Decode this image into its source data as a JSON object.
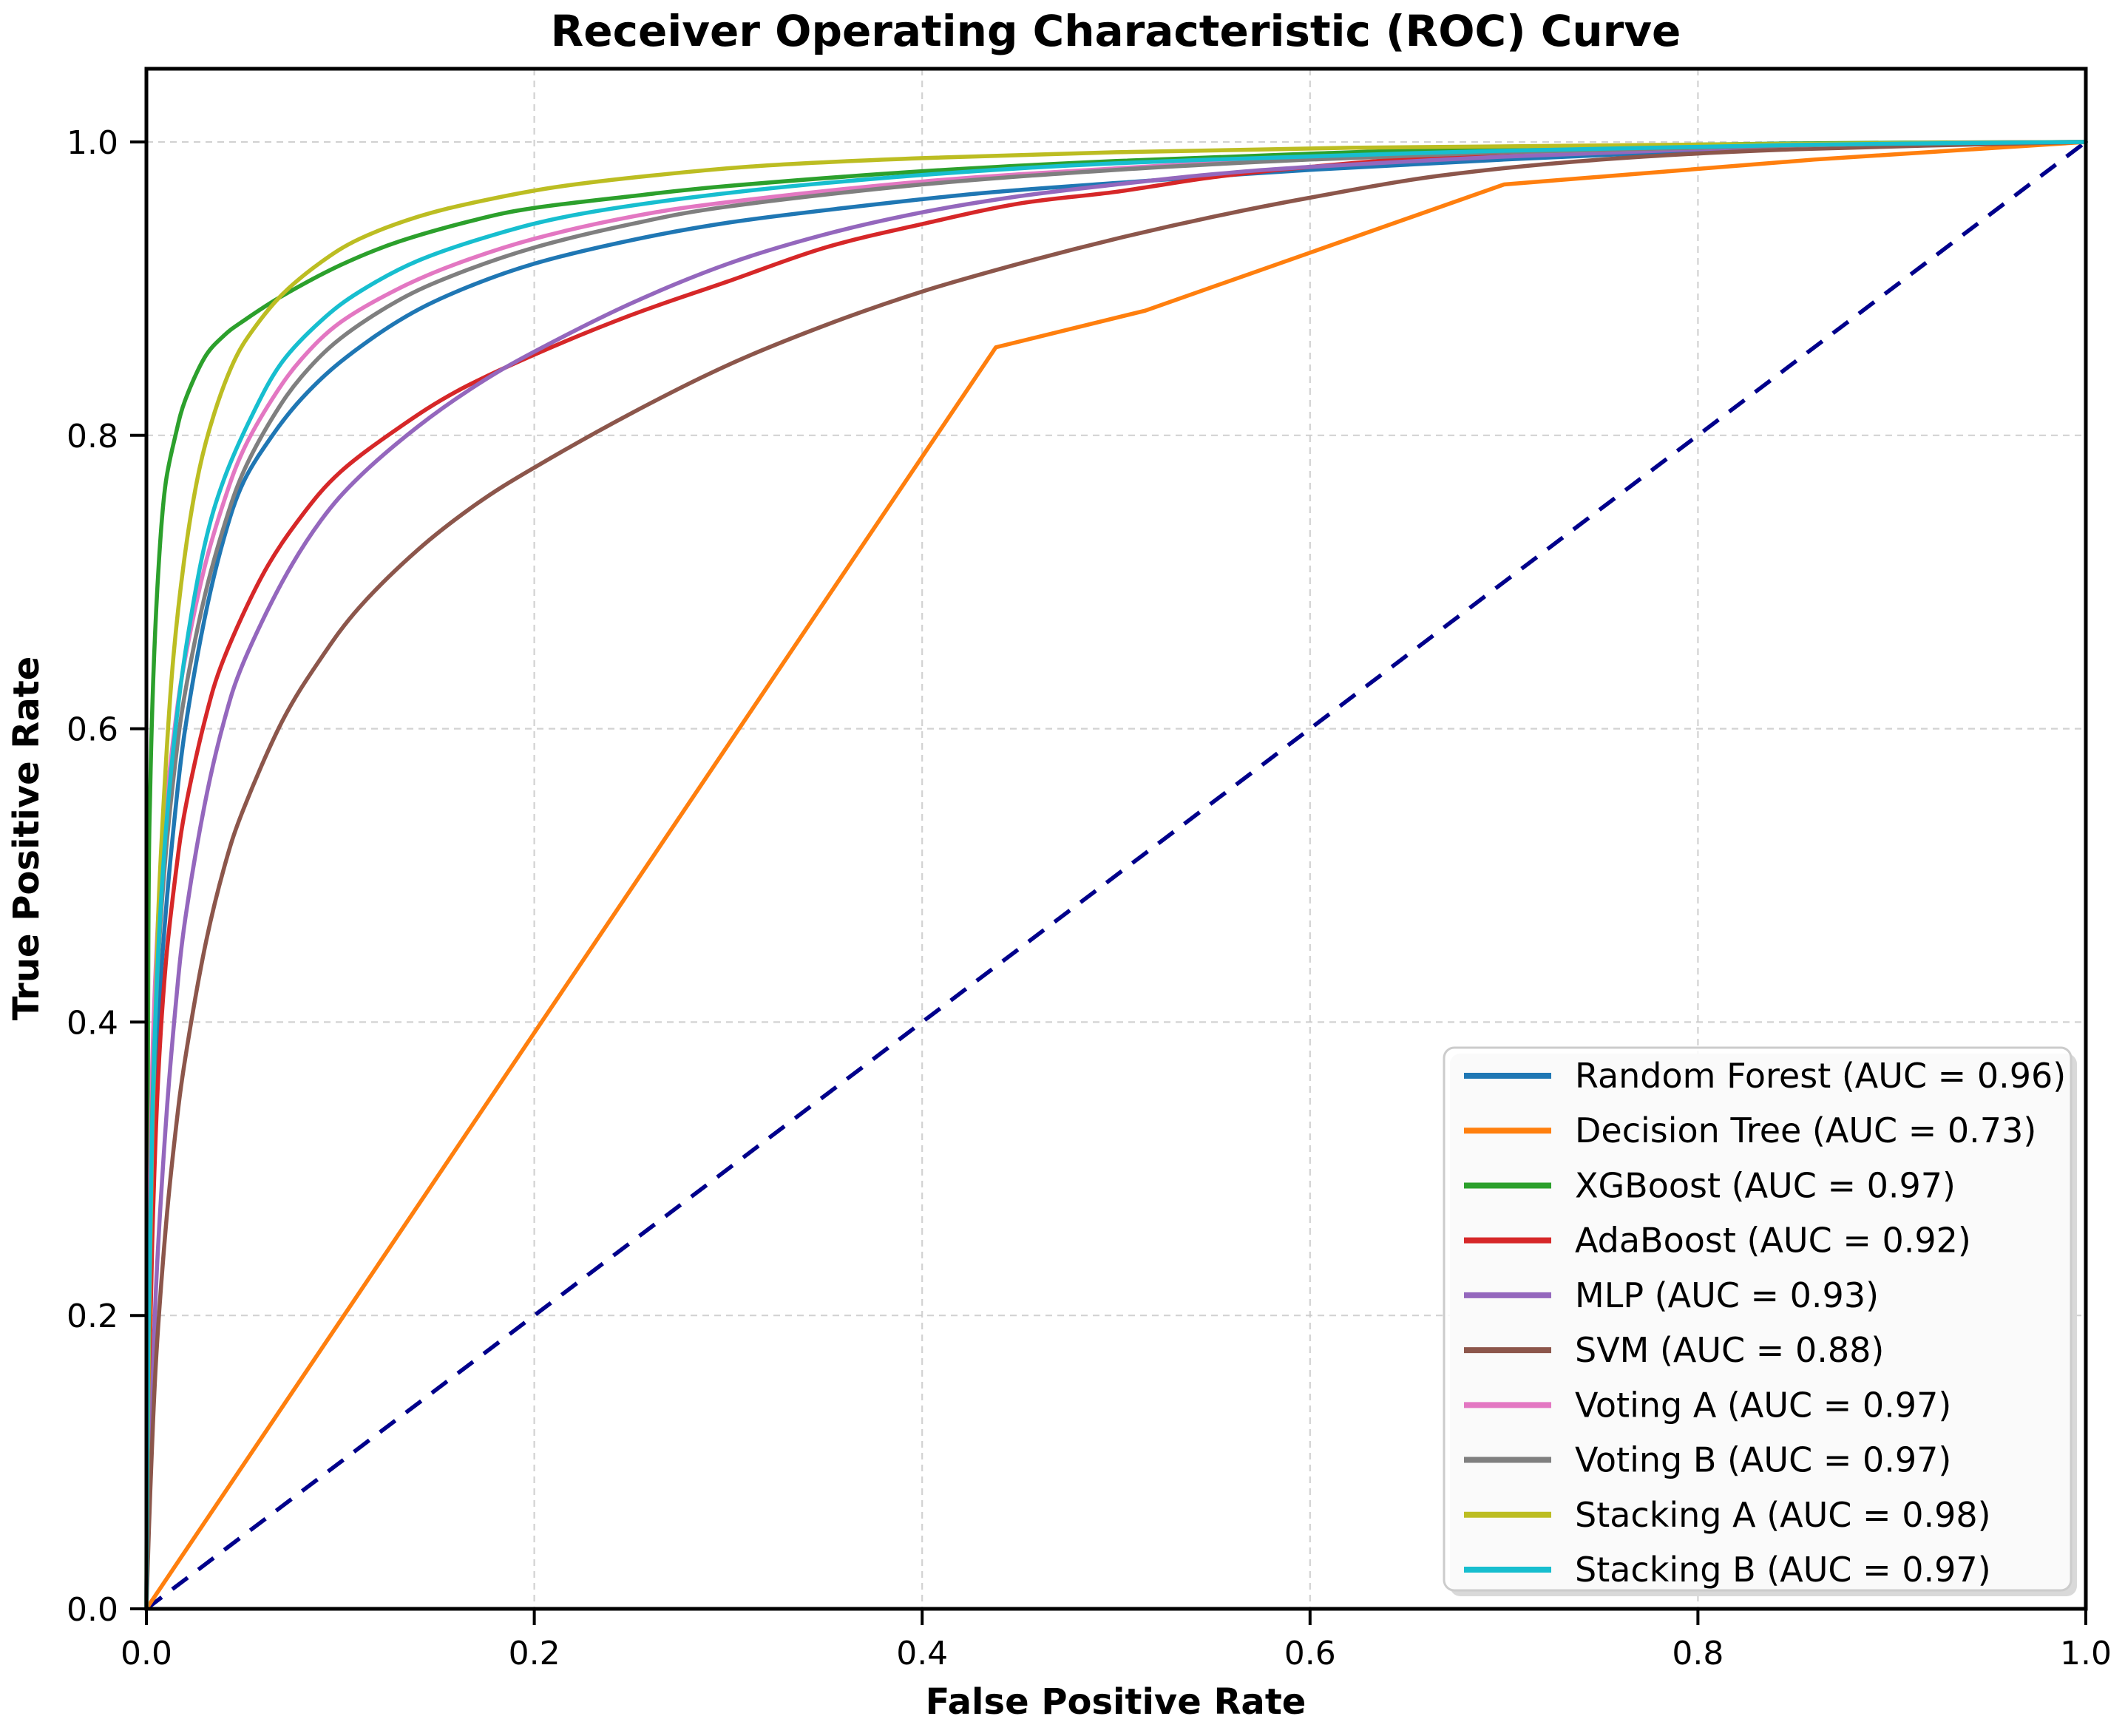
{
  "chart_data": {
    "type": "line",
    "title": "Receiver Operating Characteristic (ROC) Curve",
    "xlabel": "False Positive Rate",
    "ylabel": "True Positive Rate",
    "xlim": [
      0,
      1.0
    ],
    "ylim": [
      0,
      1.05
    ],
    "xticks": [
      0.0,
      0.2,
      0.4,
      0.6,
      0.8,
      1.0
    ],
    "yticks": [
      0.0,
      0.2,
      0.4,
      0.6,
      0.8,
      1.0
    ],
    "xtick_labels": [
      "0.0",
      "0.2",
      "0.4",
      "0.6",
      "0.8",
      "1.0"
    ],
    "ytick_labels": [
      "0.0",
      "0.2",
      "0.4",
      "0.6",
      "0.8",
      "1.0"
    ],
    "grid": true,
    "grid_color": "#c8c8c8",
    "grid_style": "dashed",
    "background_color": "#ffffff",
    "legend_position": "lower right",
    "series": [
      {
        "name": "random-forest",
        "label": "Random Forest (AUC = 0.96)",
        "auc": 0.96,
        "color": "#1f77b4",
        "style": "solid",
        "smooth": true,
        "points": [
          [
            0,
            0
          ],
          [
            0.001,
            0.18
          ],
          [
            0.003,
            0.3
          ],
          [
            0.006,
            0.4
          ],
          [
            0.01,
            0.475
          ],
          [
            0.015,
            0.545
          ],
          [
            0.02,
            0.6
          ],
          [
            0.03,
            0.675
          ],
          [
            0.04,
            0.73
          ],
          [
            0.05,
            0.768
          ],
          [
            0.065,
            0.8
          ],
          [
            0.08,
            0.825
          ],
          [
            0.1,
            0.85
          ],
          [
            0.13,
            0.878
          ],
          [
            0.16,
            0.898
          ],
          [
            0.2,
            0.917
          ],
          [
            0.25,
            0.933
          ],
          [
            0.3,
            0.945
          ],
          [
            0.36,
            0.955
          ],
          [
            0.43,
            0.965
          ],
          [
            0.5,
            0.972
          ],
          [
            0.6,
            0.981
          ],
          [
            0.7,
            0.988
          ],
          [
            0.8,
            0.994
          ],
          [
            0.9,
            0.998
          ],
          [
            1,
            1
          ]
        ]
      },
      {
        "name": "decision-tree",
        "label": "Decision Tree (AUC = 0.73)",
        "auc": 0.73,
        "color": "#ff7f0e",
        "style": "solid",
        "smooth": false,
        "points": [
          [
            0,
            0
          ],
          [
            0.438,
            0.86
          ],
          [
            0.515,
            0.885
          ],
          [
            0.7,
            0.971
          ],
          [
            0.86,
            0.988
          ],
          [
            1,
            1
          ]
        ]
      },
      {
        "name": "xgboost",
        "label": "XGBoost (AUC = 0.97)",
        "auc": 0.97,
        "color": "#2ca02c",
        "style": "solid",
        "smooth": true,
        "points": [
          [
            0,
            0
          ],
          [
            0.001,
            0.45
          ],
          [
            0.002,
            0.56
          ],
          [
            0.004,
            0.65
          ],
          [
            0.007,
            0.725
          ],
          [
            0.01,
            0.768
          ],
          [
            0.015,
            0.8
          ],
          [
            0.02,
            0.824
          ],
          [
            0.03,
            0.853
          ],
          [
            0.04,
            0.868
          ],
          [
            0.05,
            0.878
          ],
          [
            0.07,
            0.895
          ],
          [
            0.1,
            0.916
          ],
          [
            0.13,
            0.932
          ],
          [
            0.17,
            0.947
          ],
          [
            0.2,
            0.955
          ],
          [
            0.25,
            0.963
          ],
          [
            0.3,
            0.97
          ],
          [
            0.4,
            0.98
          ],
          [
            0.5,
            0.987
          ],
          [
            0.6,
            0.992
          ],
          [
            0.7,
            0.996
          ],
          [
            0.85,
            0.999
          ],
          [
            1,
            1
          ]
        ]
      },
      {
        "name": "adaboost",
        "label": "AdaBoost (AUC = 0.92)",
        "auc": 0.92,
        "color": "#d62728",
        "style": "solid",
        "smooth": true,
        "points": [
          [
            0,
            0
          ],
          [
            0.001,
            0.13
          ],
          [
            0.003,
            0.25
          ],
          [
            0.006,
            0.36
          ],
          [
            0.01,
            0.44
          ],
          [
            0.015,
            0.5
          ],
          [
            0.02,
            0.545
          ],
          [
            0.03,
            0.605
          ],
          [
            0.04,
            0.648
          ],
          [
            0.06,
            0.705
          ],
          [
            0.08,
            0.745
          ],
          [
            0.1,
            0.775
          ],
          [
            0.13,
            0.805
          ],
          [
            0.16,
            0.83
          ],
          [
            0.2,
            0.855
          ],
          [
            0.25,
            0.882
          ],
          [
            0.3,
            0.905
          ],
          [
            0.35,
            0.928
          ],
          [
            0.4,
            0.944
          ],
          [
            0.45,
            0.958
          ],
          [
            0.5,
            0.966
          ],
          [
            0.55,
            0.976
          ],
          [
            0.6,
            0.983
          ],
          [
            0.667,
            0.99
          ],
          [
            0.75,
            0.994
          ],
          [
            0.85,
            0.998
          ],
          [
            1,
            1
          ]
        ]
      },
      {
        "name": "mlp",
        "label": "MLP (AUC = 0.93)",
        "auc": 0.93,
        "color": "#9467bd",
        "style": "solid",
        "smooth": true,
        "points": [
          [
            0,
            0
          ],
          [
            0.002,
            0.1
          ],
          [
            0.005,
            0.22
          ],
          [
            0.01,
            0.33
          ],
          [
            0.015,
            0.41
          ],
          [
            0.02,
            0.47
          ],
          [
            0.03,
            0.548
          ],
          [
            0.04,
            0.605
          ],
          [
            0.05,
            0.645
          ],
          [
            0.07,
            0.7
          ],
          [
            0.09,
            0.742
          ],
          [
            0.11,
            0.772
          ],
          [
            0.14,
            0.806
          ],
          [
            0.17,
            0.834
          ],
          [
            0.2,
            0.857
          ],
          [
            0.25,
            0.89
          ],
          [
            0.3,
            0.917
          ],
          [
            0.35,
            0.937
          ],
          [
            0.4,
            0.952
          ],
          [
            0.45,
            0.963
          ],
          [
            0.5,
            0.971
          ],
          [
            0.55,
            0.978
          ],
          [
            0.6,
            0.983
          ],
          [
            0.7,
            0.99
          ],
          [
            0.8,
            0.995
          ],
          [
            0.9,
            0.998
          ],
          [
            1,
            1
          ]
        ]
      },
      {
        "name": "svm",
        "label": "SVM (AUC = 0.88)",
        "auc": 0.88,
        "color": "#8c564b",
        "style": "solid",
        "smooth": true,
        "points": [
          [
            0,
            0
          ],
          [
            0.002,
            0.08
          ],
          [
            0.005,
            0.17
          ],
          [
            0.01,
            0.26
          ],
          [
            0.015,
            0.325
          ],
          [
            0.02,
            0.375
          ],
          [
            0.03,
            0.45
          ],
          [
            0.04,
            0.505
          ],
          [
            0.05,
            0.545
          ],
          [
            0.07,
            0.605
          ],
          [
            0.09,
            0.648
          ],
          [
            0.11,
            0.683
          ],
          [
            0.14,
            0.722
          ],
          [
            0.17,
            0.753
          ],
          [
            0.2,
            0.778
          ],
          [
            0.25,
            0.815
          ],
          [
            0.3,
            0.848
          ],
          [
            0.35,
            0.875
          ],
          [
            0.4,
            0.898
          ],
          [
            0.45,
            0.917
          ],
          [
            0.5,
            0.934
          ],
          [
            0.55,
            0.949
          ],
          [
            0.6,
            0.962
          ],
          [
            0.667,
            0.977
          ],
          [
            0.75,
            0.988
          ],
          [
            0.85,
            0.995
          ],
          [
            1,
            1
          ]
        ]
      },
      {
        "name": "voting-a",
        "label": "Voting A (AUC = 0.97)",
        "auc": 0.97,
        "color": "#e377c2",
        "style": "solid",
        "smooth": true,
        "points": [
          [
            0,
            0
          ],
          [
            0.001,
            0.22
          ],
          [
            0.003,
            0.37
          ],
          [
            0.006,
            0.47
          ],
          [
            0.01,
            0.545
          ],
          [
            0.015,
            0.605
          ],
          [
            0.02,
            0.648
          ],
          [
            0.03,
            0.71
          ],
          [
            0.04,
            0.755
          ],
          [
            0.05,
            0.79
          ],
          [
            0.065,
            0.825
          ],
          [
            0.08,
            0.852
          ],
          [
            0.1,
            0.877
          ],
          [
            0.13,
            0.9
          ],
          [
            0.16,
            0.917
          ],
          [
            0.2,
            0.934
          ],
          [
            0.25,
            0.949
          ],
          [
            0.3,
            0.959
          ],
          [
            0.4,
            0.973
          ],
          [
            0.5,
            0.982
          ],
          [
            0.6,
            0.989
          ],
          [
            0.7,
            0.993
          ],
          [
            0.8,
            0.996
          ],
          [
            0.9,
            0.999
          ],
          [
            1,
            1
          ]
        ]
      },
      {
        "name": "voting-b",
        "label": "Voting B (AUC = 0.97)",
        "auc": 0.97,
        "color": "#7f7f7f",
        "style": "solid",
        "smooth": true,
        "points": [
          [
            0,
            0
          ],
          [
            0.001,
            0.2
          ],
          [
            0.003,
            0.34
          ],
          [
            0.006,
            0.44
          ],
          [
            0.01,
            0.515
          ],
          [
            0.015,
            0.578
          ],
          [
            0.02,
            0.625
          ],
          [
            0.03,
            0.69
          ],
          [
            0.04,
            0.738
          ],
          [
            0.05,
            0.775
          ],
          [
            0.065,
            0.812
          ],
          [
            0.08,
            0.84
          ],
          [
            0.1,
            0.866
          ],
          [
            0.13,
            0.892
          ],
          [
            0.16,
            0.91
          ],
          [
            0.2,
            0.928
          ],
          [
            0.25,
            0.944
          ],
          [
            0.3,
            0.956
          ],
          [
            0.4,
            0.971
          ],
          [
            0.5,
            0.981
          ],
          [
            0.6,
            0.988
          ],
          [
            0.7,
            0.993
          ],
          [
            0.8,
            0.996
          ],
          [
            0.9,
            0.999
          ],
          [
            1,
            1
          ]
        ]
      },
      {
        "name": "stacking-a",
        "label": "Stacking A (AUC = 0.98)",
        "auc": 0.98,
        "color": "#bcbd22",
        "style": "solid",
        "smooth": true,
        "points": [
          [
            0,
            0
          ],
          [
            0.001,
            0.15
          ],
          [
            0.003,
            0.32
          ],
          [
            0.006,
            0.47
          ],
          [
            0.01,
            0.575
          ],
          [
            0.014,
            0.65
          ],
          [
            0.02,
            0.72
          ],
          [
            0.027,
            0.775
          ],
          [
            0.035,
            0.815
          ],
          [
            0.045,
            0.85
          ],
          [
            0.055,
            0.872
          ],
          [
            0.07,
            0.896
          ],
          [
            0.09,
            0.918
          ],
          [
            0.11,
            0.934
          ],
          [
            0.14,
            0.949
          ],
          [
            0.17,
            0.959
          ],
          [
            0.21,
            0.969
          ],
          [
            0.26,
            0.977
          ],
          [
            0.32,
            0.984
          ],
          [
            0.4,
            0.989
          ],
          [
            0.5,
            0.993
          ],
          [
            0.62,
            0.996
          ],
          [
            0.78,
            0.998
          ],
          [
            1,
            1
          ]
        ]
      },
      {
        "name": "stacking-b",
        "label": "Stacking B (AUC = 0.97)",
        "auc": 0.97,
        "color": "#17becf",
        "style": "solid",
        "smooth": true,
        "points": [
          [
            0,
            0
          ],
          [
            0.001,
            0.18
          ],
          [
            0.003,
            0.33
          ],
          [
            0.006,
            0.445
          ],
          [
            0.01,
            0.53
          ],
          [
            0.015,
            0.6
          ],
          [
            0.021,
            0.66
          ],
          [
            0.03,
            0.725
          ],
          [
            0.04,
            0.77
          ],
          [
            0.055,
            0.815
          ],
          [
            0.07,
            0.85
          ],
          [
            0.09,
            0.878
          ],
          [
            0.11,
            0.898
          ],
          [
            0.14,
            0.919
          ],
          [
            0.18,
            0.937
          ],
          [
            0.22,
            0.95
          ],
          [
            0.28,
            0.962
          ],
          [
            0.35,
            0.972
          ],
          [
            0.45,
            0.982
          ],
          [
            0.55,
            0.988
          ],
          [
            0.7,
            0.994
          ],
          [
            0.85,
            0.998
          ],
          [
            1,
            1
          ]
        ]
      }
    ],
    "reference_line": {
      "name": "chance-diagonal",
      "color": "#00008b",
      "style": "dashed",
      "points": [
        [
          0,
          0
        ],
        [
          1,
          1
        ]
      ]
    }
  }
}
